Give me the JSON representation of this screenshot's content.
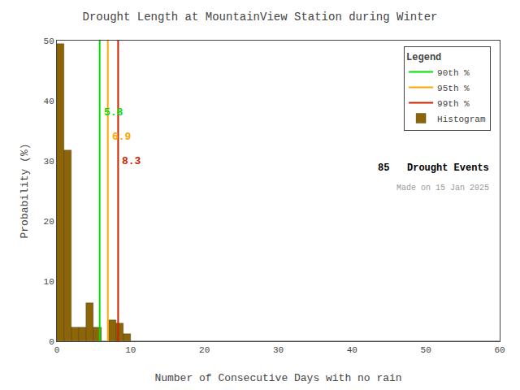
{
  "chart_data": {
    "type": "histogram",
    "title": "Drought Length at MountainView Station during Winter",
    "x_label": "Number of Consecutive Days with no rain",
    "y_label": "Probability (%)",
    "xlim": [
      0,
      60
    ],
    "ylim": [
      0,
      50
    ],
    "xticks": [
      0,
      10,
      20,
      30,
      40,
      50,
      60
    ],
    "yticks": [
      0,
      10,
      20,
      30,
      40,
      50
    ],
    "grid": false,
    "legend": "upper right",
    "legend_title": "Legend",
    "series": [
      {
        "name": "90th %",
        "type": "vline",
        "color": "#00DD00",
        "x": 5.8,
        "data_labels": true
      },
      {
        "name": "95th %",
        "type": "vline",
        "color": "#FFA500",
        "x": 6.9,
        "data_labels": true
      },
      {
        "name": "99th %",
        "type": "vline",
        "color": "#CC2200",
        "x": 8.3,
        "data_labels": true
      },
      {
        "name": "Histogram",
        "type": "histogram",
        "color": "#8B6508",
        "bins": [
          0,
          1,
          2,
          3,
          4,
          5,
          6,
          7,
          8,
          9,
          10,
          11,
          12,
          13,
          14,
          15,
          16,
          17,
          18,
          19,
          20,
          21,
          22,
          23,
          24,
          25,
          26,
          27,
          28,
          29,
          30,
          31,
          32,
          33,
          34,
          35,
          36,
          37,
          38,
          39,
          40,
          41,
          42,
          43,
          44,
          45,
          46,
          47,
          48,
          49,
          50,
          51,
          52,
          53,
          54,
          55,
          56,
          57,
          58,
          59,
          60
        ],
        "values": [
          49.4,
          31.8,
          2.35,
          2.35,
          6.35,
          2.35,
          0.0,
          3.53,
          2.94,
          1.18,
          0.0,
          0.0,
          0.0,
          0.0,
          0.0,
          0.0,
          0.0,
          0.0,
          0.0,
          0.0,
          0.0,
          0.0,
          0.0,
          0.0,
          0.0,
          0.0,
          0.0,
          0.0,
          0.0,
          0.0,
          0.0,
          0.0,
          0.0,
          0.0,
          0.0,
          0.0,
          0.0,
          0.0,
          0.0,
          0.0,
          0.0,
          0.0,
          0.0,
          0.0,
          0.0,
          0.0,
          0.0,
          0.0,
          0.0,
          0.0,
          0.0,
          0.0,
          0.0,
          0.0,
          0.0,
          0.0,
          0.0,
          0.0,
          0.0,
          0.0
        ]
      }
    ],
    "annotations": [
      "85   Drought Events",
      "Made on 15 Jan 2025"
    ]
  }
}
